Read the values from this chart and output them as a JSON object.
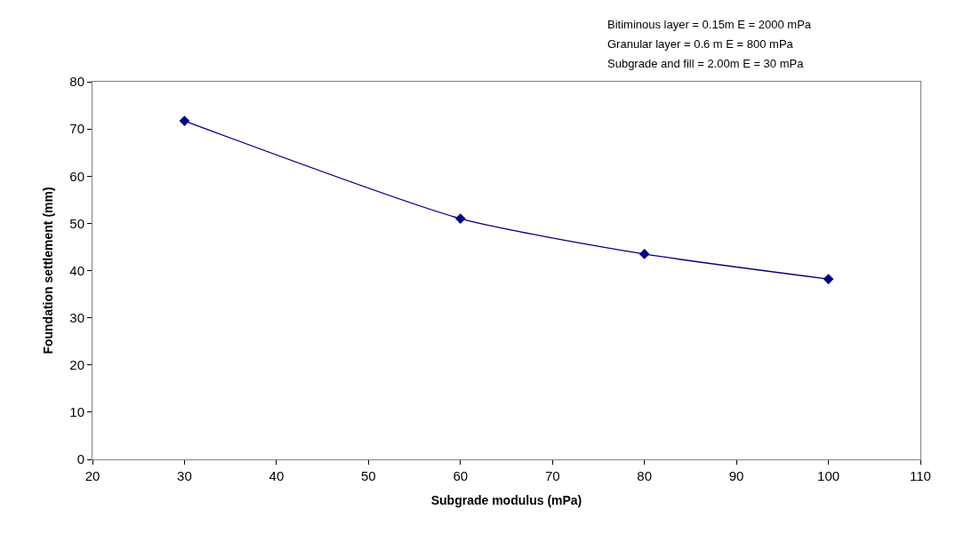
{
  "chart_data": {
    "type": "line",
    "xlabel": "Subgrade modulus (mPa)",
    "ylabel": "Foundation settlement (mm)",
    "annotations": [
      "Bitiminous layer = 0.15m E = 2000 mPa",
      "Granular layer = 0.6 m E = 800 mPa",
      "Subgrade and fill = 2.00m E = 30 mPa"
    ],
    "x": [
      30,
      60,
      80,
      100
    ],
    "series": [
      {
        "color": "#000080",
        "values": [
          71.7,
          51,
          43.5,
          38.2
        ]
      }
    ],
    "xlim": [
      20,
      110
    ],
    "xticks": [
      20,
      30,
      40,
      50,
      60,
      70,
      80,
      90,
      100,
      110
    ],
    "ylim": [
      0,
      80
    ],
    "yticks": [
      0,
      10,
      20,
      30,
      40,
      50,
      60,
      70,
      80
    ],
    "marker": "diamond",
    "line_style": "solid"
  }
}
